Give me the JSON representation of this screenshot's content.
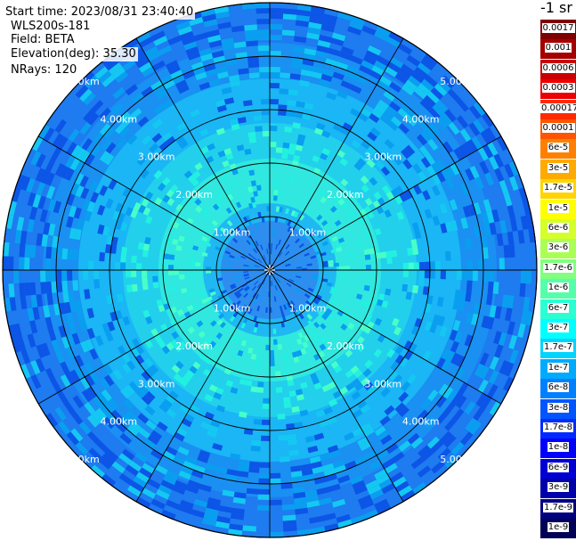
{
  "info": {
    "start_time": "Start time: 2023/08/31 23:40:40",
    "instrument": "WLS200s-181",
    "field": "Field: BETA",
    "elevation": "Elevation(deg): 35.30",
    "nrays": "NRays: 120"
  },
  "colorbar": {
    "unit_title": "-1 sr",
    "entries": [
      {
        "label": "0.0017",
        "color": "#7f0000",
        "text_color": "#ffffff"
      },
      {
        "label": "0.001",
        "color": "#a50000",
        "text_color": "#ffffff"
      },
      {
        "label": "0.0006",
        "color": "#cc0000",
        "text_color": "#ffffff"
      },
      {
        "label": "0.0003",
        "color": "#ee0000",
        "text_color": "#ffffff"
      },
      {
        "label": "0.00017",
        "color": "#ff2a00",
        "text_color": "#ffffff"
      },
      {
        "label": "0.0001",
        "color": "#ff5500",
        "text_color": "#ffffff"
      },
      {
        "label": "6e-5",
        "color": "#ff8000",
        "text_color": "#000000"
      },
      {
        "label": "3e-5",
        "color": "#ffaa00",
        "text_color": "#000000"
      },
      {
        "label": "1.7e-5",
        "color": "#ffd400",
        "text_color": "#000000"
      },
      {
        "label": "1e-5",
        "color": "#ffff00",
        "text_color": "#000000"
      },
      {
        "label": "6e-6",
        "color": "#d4ff2a",
        "text_color": "#000000"
      },
      {
        "label": "3e-6",
        "color": "#aaff55",
        "text_color": "#000000"
      },
      {
        "label": "1.7e-6",
        "color": "#80ff80",
        "text_color": "#000000"
      },
      {
        "label": "1e-6",
        "color": "#55ffaa",
        "text_color": "#000000"
      },
      {
        "label": "6e-7",
        "color": "#2affd4",
        "text_color": "#000000"
      },
      {
        "label": "3e-7",
        "color": "#00ffff",
        "text_color": "#000000"
      },
      {
        "label": "1.7e-7",
        "color": "#00d4ff",
        "text_color": "#000000"
      },
      {
        "label": "1e-7",
        "color": "#00aaff",
        "text_color": "#000000"
      },
      {
        "label": "6e-8",
        "color": "#0080ff",
        "text_color": "#000000"
      },
      {
        "label": "3e-8",
        "color": "#0055ff",
        "text_color": "#ffffff"
      },
      {
        "label": "1.7e-8",
        "color": "#002aff",
        "text_color": "#ffffff"
      },
      {
        "label": "1e-8",
        "color": "#0000ff",
        "text_color": "#ffffff"
      },
      {
        "label": "6e-9",
        "color": "#0000d4",
        "text_color": "#ffffff"
      },
      {
        "label": "3e-9",
        "color": "#0000aa",
        "text_color": "#ffffff"
      },
      {
        "label": "1.7e-9",
        "color": "#000080",
        "text_color": "#ffffff"
      },
      {
        "label": "1e-9",
        "color": "#000055",
        "text_color": "#ffffff"
      }
    ]
  },
  "rings": {
    "max_range_km": 5.0,
    "ring_ranges_km": [
      1.0,
      2.0,
      3.0,
      4.0,
      5.0
    ],
    "labels": [
      "1.00km",
      "2.00km",
      "3.00km",
      "4.00km",
      "5.00km"
    ],
    "spoke_angles_deg": [
      0,
      30,
      60,
      90,
      120,
      150,
      180,
      210,
      240,
      270,
      300,
      330
    ]
  },
  "field_colors": {
    "background_outer": "#1e7bf0",
    "middle": "#1ab6f5",
    "inner_ring": "#30e8e0",
    "center": "#2d8ef0",
    "scatter": [
      "#0c55e6",
      "#0a9ef0",
      "#14c8f2",
      "#22f0e0",
      "#48ffc8"
    ]
  }
}
